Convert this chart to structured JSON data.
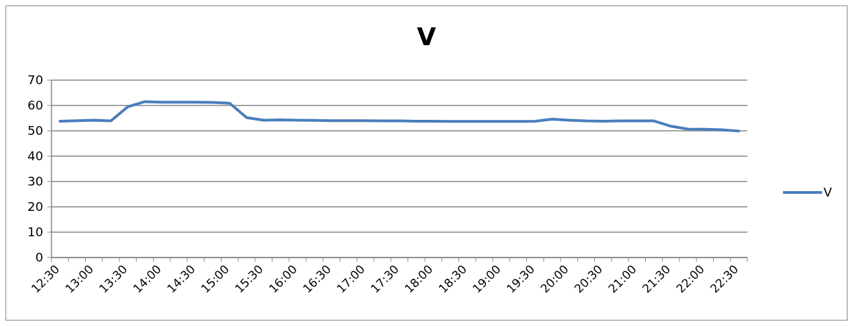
{
  "chart_data": {
    "type": "line",
    "title": "V",
    "categories": [
      "12:30",
      null,
      "13:00",
      null,
      "13:30",
      null,
      "14:00",
      null,
      "14:30",
      null,
      "15:00",
      null,
      "15:30",
      null,
      "16:00",
      null,
      "16:30",
      null,
      "17:00",
      null,
      "17:30",
      null,
      "18:00",
      null,
      "18:30",
      null,
      "19:00",
      null,
      "19:30",
      null,
      "20:00",
      null,
      "20:30",
      null,
      "21:00",
      null,
      "21:30",
      null,
      "22:00",
      null,
      "22:30"
    ],
    "series": [
      {
        "name": "V",
        "color": "#4a7ebb",
        "values": [
          53.8,
          54,
          54.2,
          53.9,
          59.5,
          61.5,
          61.3,
          61.3,
          61.3,
          61.2,
          60.9,
          55.2,
          54.2,
          54.3,
          54.2,
          54.1,
          54,
          54,
          54,
          53.9,
          53.9,
          53.8,
          53.8,
          53.7,
          53.7,
          53.7,
          53.7,
          53.7,
          53.8,
          54.6,
          54.2,
          53.9,
          53.8,
          53.9,
          53.9,
          53.9,
          51.8,
          50.7,
          50.6,
          50.4,
          49.9
        ]
      }
    ],
    "ylim": [
      0,
      70
    ],
    "yticks": [
      0,
      10,
      20,
      30,
      40,
      50,
      60,
      70
    ],
    "grid": "y",
    "legend": "right",
    "marker": "none",
    "line_style": "solid"
  }
}
